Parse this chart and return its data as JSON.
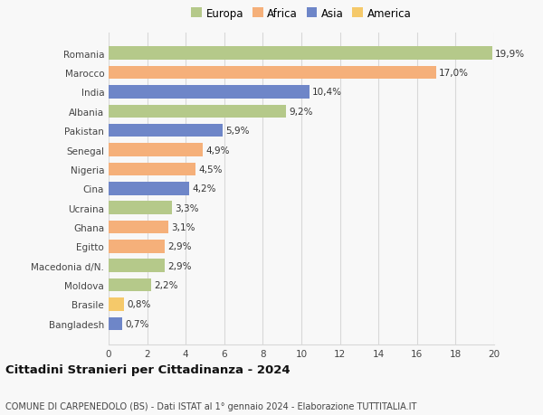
{
  "countries": [
    "Bangladesh",
    "Brasile",
    "Moldova",
    "Macedonia d/N.",
    "Egitto",
    "Ghana",
    "Ucraina",
    "Cina",
    "Nigeria",
    "Senegal",
    "Pakistan",
    "Albania",
    "India",
    "Marocco",
    "Romania"
  ],
  "values": [
    0.7,
    0.8,
    2.2,
    2.9,
    2.9,
    3.1,
    3.3,
    4.2,
    4.5,
    4.9,
    5.9,
    9.2,
    10.4,
    17.0,
    19.9
  ],
  "labels": [
    "0,7%",
    "0,8%",
    "2,2%",
    "2,9%",
    "2,9%",
    "3,1%",
    "3,3%",
    "4,2%",
    "4,5%",
    "4,9%",
    "5,9%",
    "9,2%",
    "10,4%",
    "17,0%",
    "19,9%"
  ],
  "colors": [
    "#6e86c8",
    "#f5c96a",
    "#b5c98a",
    "#b5c98a",
    "#f5b07a",
    "#f5b07a",
    "#b5c98a",
    "#6e86c8",
    "#f5b07a",
    "#f5b07a",
    "#6e86c8",
    "#b5c98a",
    "#6e86c8",
    "#f5b07a",
    "#b5c98a"
  ],
  "legend_labels": [
    "Europa",
    "Africa",
    "Asia",
    "America"
  ],
  "legend_colors": [
    "#b5c98a",
    "#f5b07a",
    "#6e86c8",
    "#f5c96a"
  ],
  "title1": "Cittadini Stranieri per Cittadinanza - 2024",
  "title2": "COMUNE DI CARPENEDOLO (BS) - Dati ISTAT al 1° gennaio 2024 - Elaborazione TUTTITALIA.IT",
  "xlim": [
    0,
    20
  ],
  "xticks": [
    0,
    2,
    4,
    6,
    8,
    10,
    12,
    14,
    16,
    18,
    20
  ],
  "background_color": "#f8f8f8",
  "grid_color": "#d8d8d8",
  "bar_height": 0.68,
  "label_fontsize": 7.5,
  "ytick_fontsize": 7.5,
  "xtick_fontsize": 7.5,
  "title1_fontsize": 9.5,
  "title2_fontsize": 7.0,
  "legend_fontsize": 8.5
}
